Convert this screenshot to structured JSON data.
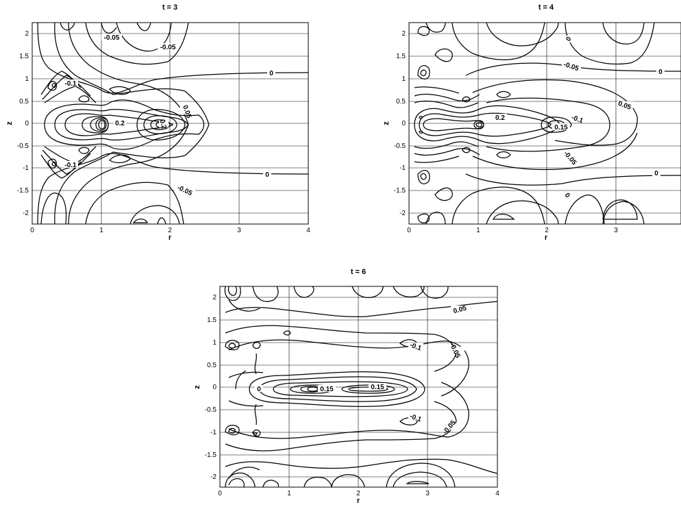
{
  "chart_data": [
    {
      "type": "contour",
      "title": "t = 3",
      "xlabel": "r",
      "ylabel": "z",
      "xlim": [
        0,
        4
      ],
      "ylim": [
        -2.25,
        2.25
      ],
      "xticks": [
        "0",
        "1",
        "2",
        "3",
        "4"
      ],
      "yticks": [
        "-2",
        "-1.5",
        "-1",
        "-0.5",
        "0",
        "0.5",
        "1",
        "1.5",
        "2"
      ],
      "grid": true,
      "contour_labels": [
        {
          "text": "-0.05",
          "r": 1.15,
          "z": 1.68
        },
        {
          "text": "-0.05",
          "r": 2.3,
          "z": 1.6
        },
        {
          "text": "0",
          "r": 3.5,
          "z": 1.12
        },
        {
          "text": "-0.1",
          "r": 0.55,
          "z": 0.9
        },
        {
          "text": "0.05",
          "r": 2.4,
          "z": 0.3
        },
        {
          "text": "0.2",
          "r": 0.5,
          "z": 0.0
        },
        {
          "text": "0.2",
          "r": 1.45,
          "z": 0.0
        },
        {
          "text": "-0.1",
          "r": 0.55,
          "z": -0.9
        },
        {
          "text": "0",
          "r": 3.4,
          "z": -1.12
        },
        {
          "text": "-0.05",
          "r": 2.1,
          "z": -1.5
        }
      ]
    },
    {
      "type": "contour",
      "title": "t = 4",
      "xlabel": "r",
      "ylabel": "z",
      "xlim": [
        0,
        4
      ],
      "ylim": [
        -2.25,
        2.25
      ],
      "xticks": [
        "0",
        "1",
        "2",
        "3"
      ],
      "yticks": [
        "-2",
        "-1.5",
        "-1",
        "-0.5",
        "0",
        "0.5",
        "1",
        "1.5",
        "2"
      ],
      "grid": true,
      "contour_labels": [
        {
          "text": "0",
          "r": 2.3,
          "z": 1.7
        },
        {
          "text": "-0.05",
          "r": 1.3,
          "z": 1.25
        },
        {
          "text": "0",
          "r": 3.3,
          "z": 1.15
        },
        {
          "text": "0.05",
          "r": 3.1,
          "z": 0.4
        },
        {
          "text": "0.2",
          "r": 1.3,
          "z": 0.12
        },
        {
          "text": "-0.1",
          "r": 2.05,
          "z": 0.1
        },
        {
          "text": "0.15",
          "r": 2.05,
          "z": -0.08
        },
        {
          "text": "-0.05",
          "r": 1.25,
          "z": -0.8
        },
        {
          "text": "0",
          "r": 3.3,
          "z": -1.12
        },
        {
          "text": "0",
          "r": 1.7,
          "z": -1.7
        }
      ]
    },
    {
      "type": "contour",
      "title": "t = 6",
      "xlabel": "r",
      "ylabel": "z",
      "xlim": [
        0,
        4
      ],
      "ylim": [
        -2.25,
        2.25
      ],
      "xticks": [
        "0",
        "1",
        "2",
        "3",
        "4"
      ],
      "yticks": [
        "-2",
        "-1.5",
        "-1",
        "-0.5",
        "0",
        "0.5",
        "1",
        "1.5",
        "2"
      ],
      "grid": true,
      "contour_labels": [
        {
          "text": "0.05",
          "r": 2.75,
          "z": 1.75
        },
        {
          "text": "-0.1",
          "r": 2.85,
          "z": 0.9
        },
        {
          "text": "-0.05",
          "r": 3.55,
          "z": 0.85
        },
        {
          "text": "0",
          "r": 0.55,
          "z": 0.0
        },
        {
          "text": "0.15",
          "r": 1.55,
          "z": 0.0
        },
        {
          "text": "0.15",
          "r": 2.3,
          "z": 0.05
        },
        {
          "text": "-0.1",
          "r": 2.85,
          "z": -0.7
        },
        {
          "text": "-0.05",
          "r": 3.1,
          "z": -0.85
        }
      ]
    }
  ]
}
